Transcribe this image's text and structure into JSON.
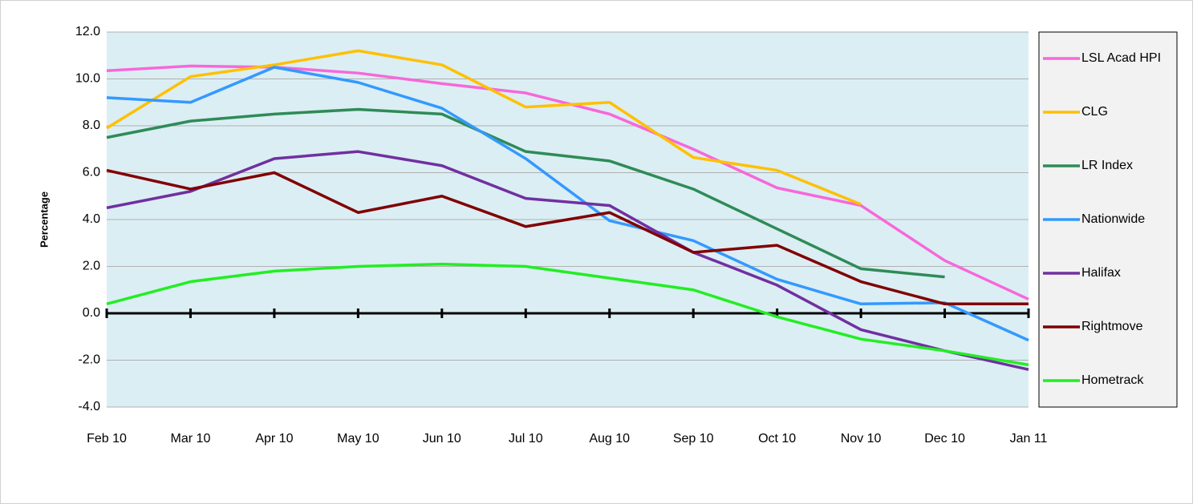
{
  "chart_data": {
    "type": "line",
    "y_label": "Percentage",
    "categories": [
      "Feb 10",
      "Mar 10",
      "Apr 10",
      "May 10",
      "Jun 10",
      "Jul 10",
      "Aug 10",
      "Sep 10",
      "Oct 10",
      "Nov 10",
      "Dec 10",
      "Jan 11"
    ],
    "ylim": [
      -4,
      12
    ],
    "yticks": [
      {
        "value": -4,
        "label": "-4.0"
      },
      {
        "value": -2,
        "label": "-2.0"
      },
      {
        "value": 0,
        "label": "0.0"
      },
      {
        "value": 2,
        "label": "2.0"
      },
      {
        "value": 4,
        "label": "4.0"
      },
      {
        "value": 6,
        "label": "6.0"
      },
      {
        "value": 8,
        "label": "8.0"
      },
      {
        "value": 10,
        "label": "10.0"
      },
      {
        "value": 12,
        "label": "12.0"
      }
    ],
    "grid": true,
    "legend": "right",
    "series": [
      {
        "name": "LSL Acad HPI",
        "color": "#f768d9",
        "values": [
          10.35,
          10.55,
          10.5,
          10.25,
          9.8,
          9.4,
          8.5,
          7.0,
          5.35,
          4.6,
          2.25,
          0.6
        ]
      },
      {
        "name": "CLG",
        "color": "#ffc000",
        "values": [
          7.9,
          10.1,
          10.6,
          11.2,
          10.6,
          8.8,
          9.0,
          6.65,
          6.1,
          4.65,
          null,
          null
        ]
      },
      {
        "name": "LR Index",
        "color": "#2e8b57",
        "values": [
          7.5,
          8.2,
          8.5,
          8.7,
          8.5,
          6.9,
          6.5,
          5.3,
          3.6,
          1.9,
          1.55,
          null
        ]
      },
      {
        "name": "Nationwide",
        "color": "#3399ff",
        "values": [
          9.2,
          9.0,
          10.5,
          9.85,
          8.75,
          6.6,
          3.95,
          3.1,
          1.45,
          0.4,
          0.45,
          -1.15
        ]
      },
      {
        "name": "Halifax",
        "color": "#7030a0",
        "values": [
          4.5,
          5.2,
          6.6,
          6.9,
          6.3,
          4.9,
          4.6,
          2.6,
          1.2,
          -0.7,
          -1.6,
          -2.4
        ]
      },
      {
        "name": "Rightmove",
        "color": "#800000",
        "values": [
          6.1,
          5.3,
          6.0,
          4.3,
          5.0,
          3.7,
          4.3,
          2.6,
          2.9,
          1.35,
          0.4,
          0.4
        ]
      },
      {
        "name": "Hometrack",
        "color": "#22ee22",
        "values": [
          0.4,
          1.35,
          1.8,
          2.0,
          2.1,
          2.0,
          1.5,
          1.0,
          -0.15,
          -1.1,
          -1.6,
          -2.2
        ]
      }
    ]
  }
}
